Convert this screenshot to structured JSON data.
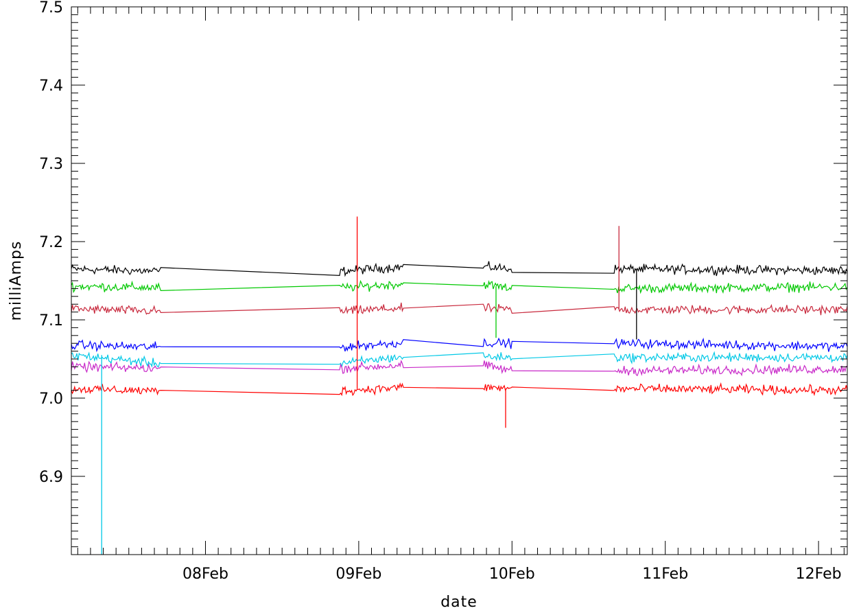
{
  "chart_data": {
    "type": "line",
    "title": "",
    "xlabel": "date",
    "ylabel": "milliAmps",
    "ylim": [
      6.8,
      7.5
    ],
    "xlim": [
      "2024-02-07T03:00",
      "2024-02-12T04:30"
    ],
    "yticks": [
      6.9,
      7.0,
      7.1,
      7.2,
      7.3,
      7.4,
      7.5
    ],
    "ytick_labels": [
      "6.9",
      "7.0",
      "7.1",
      "7.2",
      "7.3",
      "7.4",
      "7.5"
    ],
    "xticks": [
      "2024-02-08T00:00",
      "2024-02-09T00:00",
      "2024-02-10T00:00",
      "2024-02-11T00:00",
      "2024-02-12T00:00"
    ],
    "xtick_labels": [
      "08Feb",
      "09Feb",
      "10Feb",
      "11Feb",
      "12Feb"
    ],
    "grid": false,
    "legend": "none",
    "segments": [
      [
        "2024-02-07T03:00",
        "2024-02-07T17:00"
      ],
      [
        "2024-02-08T21:00",
        "2024-02-09T07:00"
      ],
      [
        "2024-02-09T19:30",
        "2024-02-10T00:00"
      ],
      [
        "2024-02-10T16:00",
        "2024-02-12T04:30"
      ]
    ],
    "series": [
      {
        "color": "#000000",
        "noise": 0.004,
        "values": [
          7.165,
          7.162,
          7.168,
          7.165,
          7.163,
          7.162
        ]
      },
      {
        "color": "#00c800",
        "noise": 0.004,
        "values": [
          7.143,
          7.141,
          7.146,
          7.14,
          7.142,
          7.142
        ]
      },
      {
        "color": "#c8283c",
        "noise": 0.004,
        "values": [
          7.114,
          7.111,
          7.115,
          7.113,
          7.113,
          7.113
        ]
      },
      {
        "color": "#0000ff",
        "noise": 0.004,
        "values": [
          7.068,
          7.065,
          7.071,
          7.07,
          7.066,
          7.066
        ]
      },
      {
        "color": "#00c8e6",
        "noise": 0.004,
        "values": [
          7.055,
          7.044,
          7.053,
          7.052,
          7.052,
          7.054
        ]
      },
      {
        "color": "#c828c8",
        "noise": 0.004,
        "values": [
          7.04,
          7.038,
          7.042,
          7.035,
          7.037,
          7.037
        ]
      },
      {
        "color": "#ff0000",
        "noise": 0.004,
        "values": [
          7.012,
          7.009,
          7.014,
          7.012,
          7.01,
          7.01
        ]
      }
    ],
    "spikes": [
      {
        "x": "2024-02-07T07:45",
        "y": 6.8,
        "color": "#00c8e6"
      },
      {
        "x": "2024-02-08T23:45",
        "y": 7.232,
        "color": "#ff0000"
      },
      {
        "x": "2024-02-09T23:00",
        "y": 6.962,
        "color": "#ff0000"
      },
      {
        "x": "2024-02-09T21:30",
        "y": 7.077,
        "color": "#00c800"
      },
      {
        "x": "2024-02-10T16:45",
        "y": 7.22,
        "color": "#c8283c"
      },
      {
        "x": "2024-02-10T19:30",
        "y": 7.075,
        "color": "#000000"
      }
    ]
  }
}
